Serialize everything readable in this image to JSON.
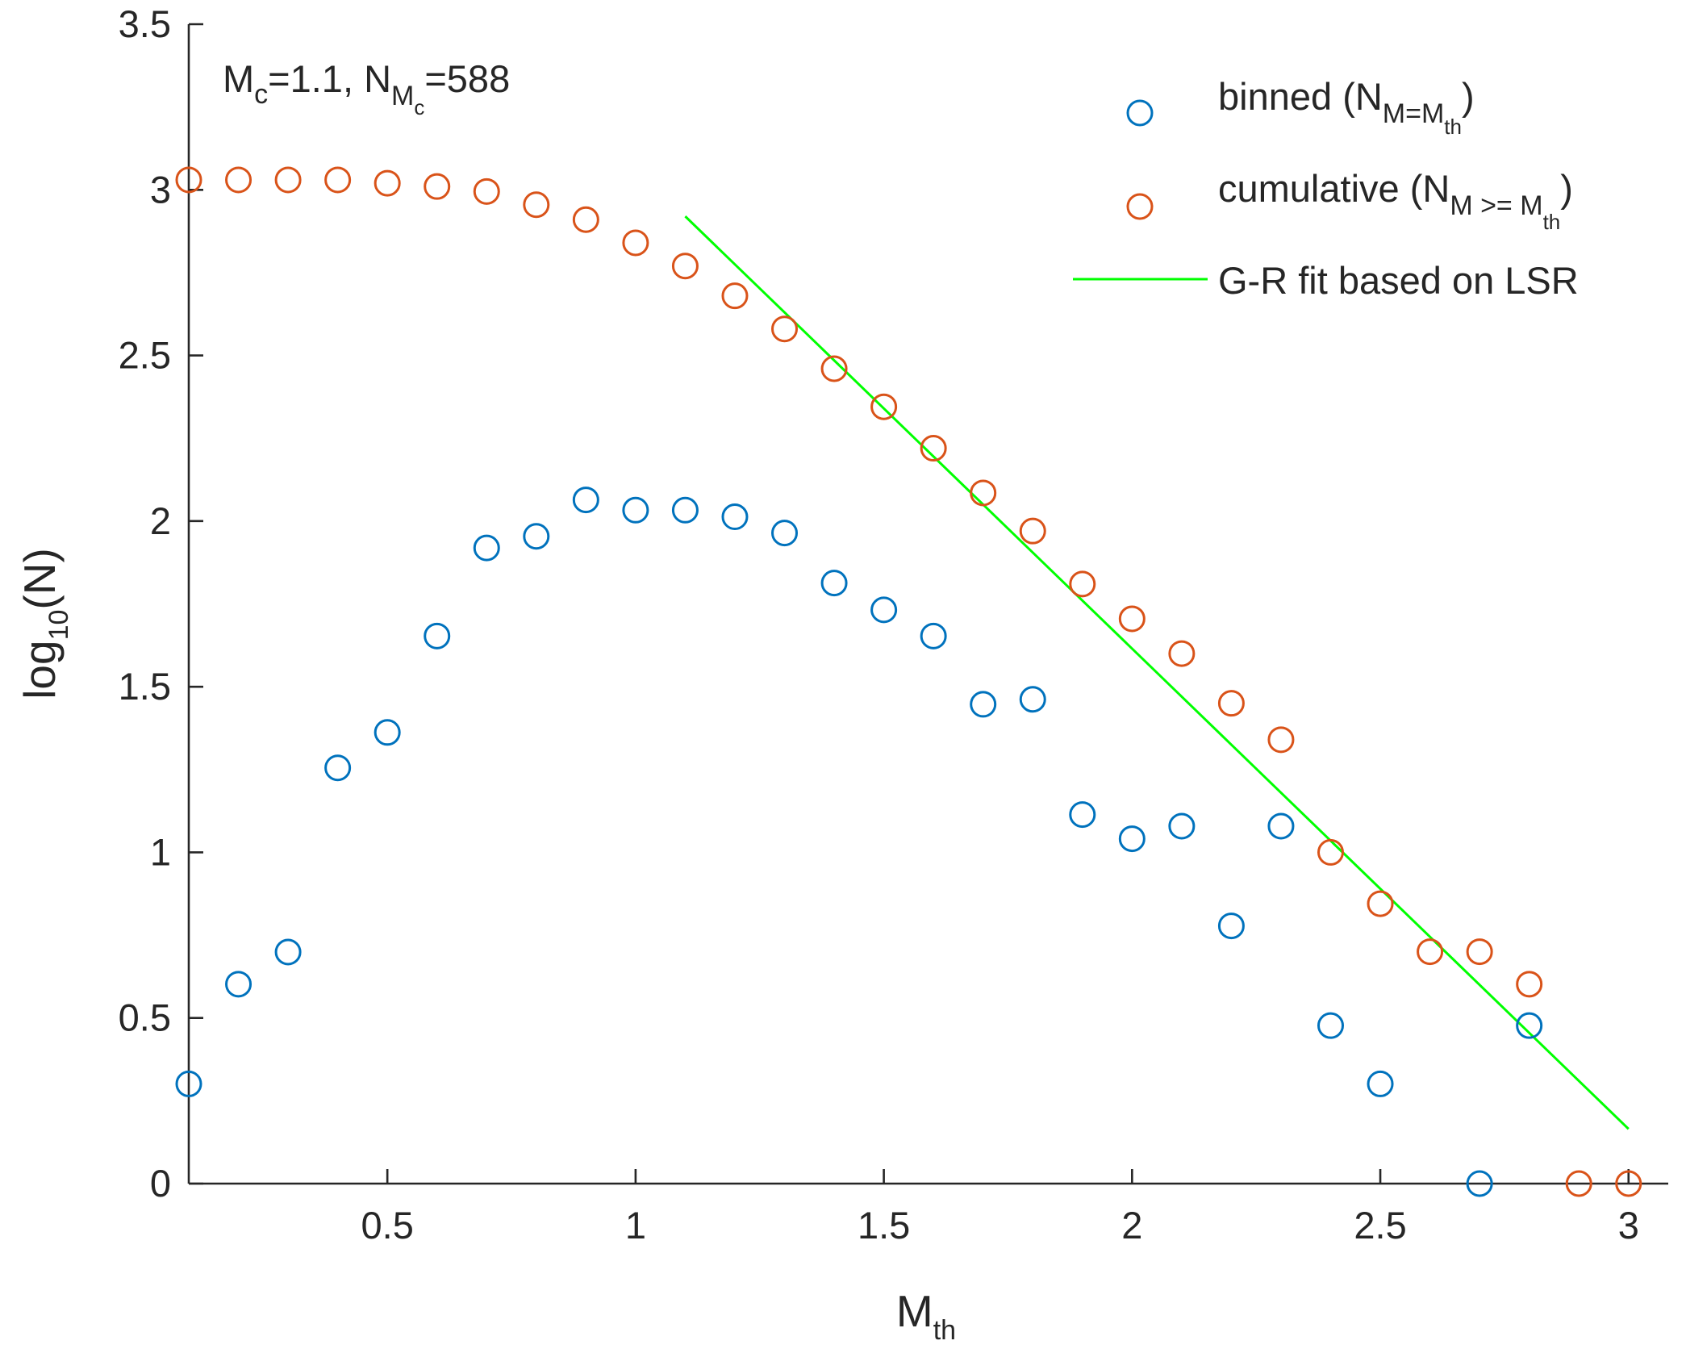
{
  "chart_data": {
    "type": "scatter",
    "xlabel": "M",
    "xlabel_sub": "th",
    "ylabel": "log",
    "ylabel_sub": "10",
    "ylabel_suffix": "(N)",
    "xlim": [
      0.1,
      3.08
    ],
    "ylim": [
      0,
      3.5
    ],
    "xticks": [
      0.5,
      1,
      1.5,
      2,
      2.5,
      3
    ],
    "xtick_labels": [
      "0.5",
      "1",
      "1.5",
      "2",
      "2.5",
      "3"
    ],
    "yticks": [
      0,
      0.5,
      1,
      1.5,
      2,
      2.5,
      3,
      3.5
    ],
    "ytick_labels": [
      "0",
      "0.5",
      "1",
      "1.5",
      "2",
      "2.5",
      "3",
      "3.5"
    ],
    "grid": false,
    "annotation": {
      "m_main": "M",
      "m_sub": "c",
      "m_value": "=1.1, ",
      "n_main": "N",
      "n_sub": "M",
      "n_subsub": "c",
      "n_value": "=588"
    },
    "legend_position": "top-right",
    "series": [
      {
        "name": "binned",
        "legend_main": "binned (N",
        "legend_sub": "M=M",
        "legend_subsub": "th",
        "legend_close": ")",
        "color": "#0072BD",
        "marker": "open-circle",
        "x": [
          0.1,
          0.2,
          0.3,
          0.4,
          0.5,
          0.6,
          0.7,
          0.8,
          0.9,
          1.0,
          1.1,
          1.2,
          1.3,
          1.4,
          1.5,
          1.6,
          1.7,
          1.8,
          1.9,
          2.0,
          2.1,
          2.2,
          2.3,
          2.4,
          2.5,
          2.7,
          2.8
        ],
        "y": [
          0.301,
          0.602,
          0.699,
          1.255,
          1.362,
          1.653,
          1.919,
          1.954,
          2.064,
          2.033,
          2.033,
          2.013,
          1.964,
          1.813,
          1.732,
          1.653,
          1.447,
          1.462,
          1.114,
          1.041,
          1.079,
          0.778,
          1.079,
          0.477,
          0.301,
          0.0,
          0.477
        ]
      },
      {
        "name": "cumulative",
        "legend_main": "cumulative (N",
        "legend_sub": "M >= M",
        "legend_subsub": "th",
        "legend_close": ")",
        "color": "#D95319",
        "marker": "open-circle",
        "x": [
          0.1,
          0.2,
          0.3,
          0.4,
          0.5,
          0.6,
          0.7,
          0.8,
          0.9,
          1.0,
          1.1,
          1.2,
          1.3,
          1.4,
          1.5,
          1.6,
          1.7,
          1.8,
          1.9,
          2.0,
          2.1,
          2.2,
          2.3,
          2.4,
          2.5,
          2.6,
          2.7,
          2.8,
          2.9,
          3.0
        ],
        "y": [
          3.03,
          3.03,
          3.03,
          3.03,
          3.02,
          3.01,
          2.995,
          2.955,
          2.91,
          2.84,
          2.77,
          2.68,
          2.58,
          2.46,
          2.345,
          2.22,
          2.085,
          1.97,
          1.81,
          1.705,
          1.6,
          1.45,
          1.34,
          1.0,
          0.845,
          0.7,
          0.7,
          0.602,
          0.0,
          0.0
        ]
      },
      {
        "name": "G-R fit based on LSR",
        "legend_main": "G-R fit based on LSR",
        "color": "#00FF00",
        "marker": "line",
        "x": [
          1.1,
          3.0
        ],
        "y": [
          2.92,
          0.165
        ]
      }
    ]
  }
}
